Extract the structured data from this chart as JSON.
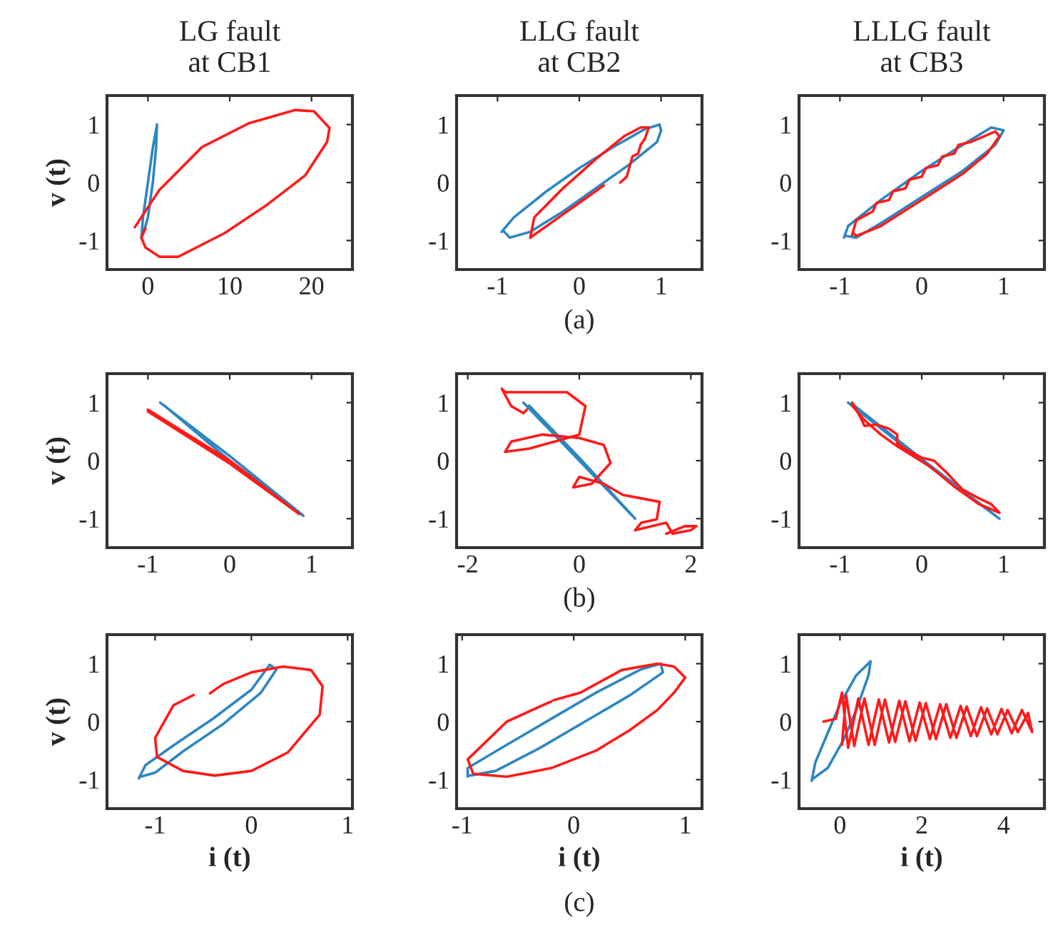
{
  "chart_data": [
    {
      "type": "line",
      "title": "LG fault\nat CB1",
      "ylabel": "v (t)",
      "xlim": [
        -5,
        25
      ],
      "xticks": [
        0,
        10,
        20
      ],
      "ylim": [
        -1.5,
        1.5
      ],
      "yticks": [
        -1,
        0,
        1
      ],
      "series": [
        {
          "color": "#2e86c1",
          "x": [
            1.1,
            1.0,
            0.6,
            0.0,
            -0.5,
            -0.8,
            -0.6,
            0.0,
            0.6,
            1.05
          ],
          "values": [
            1.0,
            0.6,
            0.0,
            -0.6,
            -0.85,
            -0.95,
            -0.6,
            0.0,
            0.6,
            0.95
          ]
        },
        {
          "color": "#ff1a1a",
          "x": [
            -1.6,
            1.4,
            6.6,
            12.3,
            18.0,
            20.3,
            22.2,
            21.9,
            19.2,
            14.6,
            9.4,
            3.7,
            1.4,
            -0.3,
            -0.8,
            -0.3
          ],
          "values": [
            -0.77,
            -0.13,
            0.61,
            1.02,
            1.25,
            1.23,
            0.94,
            0.7,
            0.12,
            -0.38,
            -0.87,
            -1.28,
            -1.28,
            -1.12,
            -0.95,
            -0.79
          ]
        }
      ]
    },
    {
      "type": "line",
      "title": "LLG fault\nat CB2",
      "annotations": [
        "(a)"
      ],
      "xlim": [
        -1.5,
        1.5
      ],
      "xticks": [
        -1,
        0,
        1
      ],
      "ylim": [
        -1.5,
        1.5
      ],
      "yticks": [
        -1,
        0,
        1
      ],
      "series": [
        {
          "color": "#2e86c1",
          "x": [
            -0.95,
            -0.8,
            -0.4,
            0.0,
            0.4,
            0.8,
            0.98,
            1.0,
            0.95,
            0.6,
            0.2,
            -0.2,
            -0.6,
            -0.85,
            -0.93
          ],
          "values": [
            -0.85,
            -0.6,
            -0.15,
            0.25,
            0.6,
            0.92,
            1.0,
            0.9,
            0.7,
            0.3,
            -0.1,
            -0.5,
            -0.85,
            -0.95,
            -0.83
          ]
        },
        {
          "color": "#ff1a1a",
          "x": [
            0.3,
            0.0,
            -0.3,
            -0.6,
            -0.55,
            -0.2,
            0.2,
            0.55,
            0.75,
            0.85,
            0.8,
            0.75,
            0.72,
            0.65,
            0.62,
            0.58,
            0.5
          ],
          "values": [
            -0.05,
            -0.35,
            -0.65,
            -0.95,
            -0.6,
            -0.1,
            0.4,
            0.8,
            0.95,
            0.95,
            0.75,
            0.65,
            0.5,
            0.45,
            0.3,
            0.1,
            0.0
          ]
        }
      ]
    },
    {
      "type": "line",
      "title": "LLLG fault\nat CB3",
      "xlim": [
        -1.5,
        1.5
      ],
      "xticks": [
        -1,
        0,
        1
      ],
      "ylim": [
        -1.5,
        1.5
      ],
      "yticks": [
        -1,
        0,
        1
      ],
      "series": [
        {
          "color": "#2e86c1",
          "x": [
            -0.95,
            -0.9,
            -0.5,
            0.0,
            0.5,
            0.85,
            1.0,
            0.9,
            0.5,
            0.0,
            -0.5,
            -0.8,
            -0.93
          ],
          "values": [
            -0.95,
            -0.75,
            -0.3,
            0.2,
            0.65,
            0.95,
            0.9,
            0.65,
            0.2,
            -0.25,
            -0.7,
            -0.95,
            -0.92
          ]
        },
        {
          "color": "#ff1a1a",
          "x": [
            -0.85,
            -0.8,
            -0.6,
            -0.55,
            -0.4,
            -0.35,
            -0.2,
            -0.15,
            0.0,
            0.05,
            0.2,
            0.25,
            0.4,
            0.45,
            0.6,
            0.9,
            0.95,
            0.8,
            0.5,
            0.0,
            -0.5,
            -0.8,
            -0.84
          ],
          "values": [
            -0.9,
            -0.65,
            -0.5,
            -0.35,
            -0.3,
            -0.15,
            -0.1,
            0.05,
            0.1,
            0.25,
            0.3,
            0.45,
            0.5,
            0.65,
            0.7,
            0.88,
            0.8,
            0.5,
            0.15,
            -0.3,
            -0.75,
            -0.92,
            -0.87
          ]
        }
      ]
    },
    {
      "type": "line",
      "ylabel": "v (t)",
      "xlim": [
        -1.5,
        1.5
      ],
      "xticks": [
        -1,
        0,
        1
      ],
      "ylim": [
        -1.5,
        1.5
      ],
      "yticks": [
        -1,
        0,
        1
      ],
      "series": [
        {
          "color": "#2e86c1",
          "x": [
            -0.85,
            0.0,
            0.9,
            0.0,
            -0.8
          ],
          "values": [
            1.0,
            0.08,
            -0.95,
            0.0,
            0.95
          ]
        },
        {
          "color": "#ff1a1a",
          "x": [
            -1.0,
            0.0,
            0.85,
            0.0,
            -1.0
          ],
          "values": [
            0.88,
            0.0,
            -0.92,
            -0.05,
            0.85
          ]
        }
      ]
    },
    {
      "type": "line",
      "annotations": [
        "(b)"
      ],
      "xlim": [
        -2.2,
        2.2
      ],
      "xticks": [
        -2,
        0,
        2
      ],
      "ylim": [
        -1.5,
        1.5
      ],
      "yticks": [
        -1,
        0,
        1
      ],
      "series": [
        {
          "color": "#2e86c1",
          "x": [
            -1.0,
            0.0,
            1.0,
            0.0,
            -0.9
          ],
          "values": [
            1.0,
            0.0,
            -1.0,
            0.05,
            0.95
          ]
        },
        {
          "color": "#ff1a1a",
          "x": [
            -0.94,
            -1.0,
            -1.22,
            -1.39,
            -1.33,
            -0.78,
            -0.22,
            0.11,
            0.0,
            -0.44,
            -0.89,
            -1.33,
            -1.22,
            -0.67,
            0.0,
            0.44,
            0.56,
            0.22,
            -0.11,
            0.0,
            0.44,
            0.78,
            1.11,
            1.44,
            1.39,
            1.11,
            1.0,
            1.56,
            1.67,
            2.0,
            2.1,
            1.89,
            1.56
          ],
          "values": [
            0.88,
            0.82,
            0.94,
            1.24,
            1.18,
            1.18,
            1.18,
            0.94,
            0.45,
            0.33,
            0.21,
            0.15,
            0.33,
            0.45,
            0.39,
            0.27,
            -0.04,
            -0.4,
            -0.46,
            -0.28,
            -0.4,
            -0.59,
            -0.65,
            -0.71,
            -1.01,
            -1.07,
            -1.2,
            -1.07,
            -1.26,
            -1.2,
            -1.13,
            -1.13,
            -1.26
          ]
        }
      ]
    },
    {
      "type": "line",
      "xlim": [
        -1.5,
        1.5
      ],
      "xticks": [
        -1,
        0,
        1
      ],
      "ylim": [
        -1.5,
        1.5
      ],
      "yticks": [
        -1,
        0,
        1
      ],
      "series": [
        {
          "color": "#2e86c1",
          "x": [
            -0.9,
            0.0,
            0.95,
            0.0,
            -0.85
          ],
          "values": [
            1.0,
            0.0,
            -1.0,
            0.03,
            0.98
          ]
        },
        {
          "color": "#ff1a1a",
          "x": [
            -0.85,
            -0.75,
            -0.7,
            -0.55,
            -0.4,
            -0.3,
            -0.3,
            -0.2,
            0.0,
            0.15,
            0.3,
            0.5,
            0.7,
            0.85,
            0.95,
            0.7,
            0.4,
            0.1,
            -0.3,
            -0.5,
            -0.7,
            -0.85
          ],
          "values": [
            1.0,
            0.75,
            0.6,
            0.62,
            0.55,
            0.45,
            0.3,
            0.2,
            0.05,
            0.0,
            -0.2,
            -0.5,
            -0.65,
            -0.75,
            -0.9,
            -0.75,
            -0.45,
            -0.1,
            0.25,
            0.45,
            0.7,
            0.95
          ]
        }
      ]
    },
    {
      "type": "line",
      "ylabel": "v (t)",
      "xlabel": "i (t)",
      "xlim": [
        -1.5,
        1.05
      ],
      "xticks": [
        -1,
        0,
        1
      ],
      "ylim": [
        -1.5,
        1.5
      ],
      "yticks": [
        -1,
        0,
        1
      ],
      "series": [
        {
          "color": "#2e86c1",
          "x": [
            -1.17,
            -1.1,
            -0.8,
            -0.4,
            0.0,
            0.19,
            0.26,
            0.1,
            -0.3,
            -0.7,
            -1.0,
            -1.15
          ],
          "values": [
            -0.98,
            -0.75,
            -0.4,
            0.05,
            0.55,
            0.98,
            0.9,
            0.5,
            -0.05,
            -0.5,
            -0.88,
            -0.95
          ]
        },
        {
          "color": "#ff1a1a",
          "x": [
            -0.6,
            -0.81,
            -1.0,
            -0.98,
            -0.71,
            -0.38,
            0.0,
            0.38,
            0.71,
            0.74,
            0.62,
            0.33,
            0.0,
            -0.29,
            -0.43
          ],
          "values": [
            0.46,
            0.28,
            -0.28,
            -0.61,
            -0.85,
            -0.93,
            -0.85,
            -0.53,
            0.12,
            0.61,
            0.89,
            0.95,
            0.85,
            0.65,
            0.49
          ]
        }
      ]
    },
    {
      "type": "line",
      "xlabel": "i (t)",
      "annotations": [
        "(c)"
      ],
      "xlim": [
        -1.05,
        1.15
      ],
      "xticks": [
        -1,
        0,
        1
      ],
      "ylim": [
        -1.5,
        1.5
      ],
      "yticks": [
        -1,
        0,
        1
      ],
      "series": [
        {
          "color": "#2e86c1",
          "x": [
            -0.95,
            -0.95,
            -0.6,
            -0.2,
            0.2,
            0.6,
            0.78,
            0.8,
            0.5,
            0.1,
            -0.3,
            -0.7,
            -0.93
          ],
          "values": [
            -0.95,
            -0.8,
            -0.4,
            0.05,
            0.5,
            0.9,
            1.0,
            0.85,
            0.45,
            0.0,
            -0.45,
            -0.85,
            -0.93
          ]
        },
        {
          "color": "#ff1a1a",
          "x": [
            -0.2,
            -0.6,
            -0.95,
            -0.9,
            -0.6,
            -0.2,
            0.2,
            0.5,
            0.75,
            0.9,
            1.0,
            0.9,
            0.75,
            0.43,
            0.06,
            -0.18
          ],
          "values": [
            0.35,
            0.0,
            -0.65,
            -0.9,
            -0.95,
            -0.8,
            -0.5,
            -0.15,
            0.2,
            0.5,
            0.76,
            0.95,
            1.0,
            0.89,
            0.5,
            0.37
          ]
        }
      ]
    },
    {
      "type": "line",
      "xlabel": "i (t)",
      "xlim": [
        -1,
        5
      ],
      "xticks": [
        0,
        2,
        4
      ],
      "ylim": [
        -1.5,
        1.5
      ],
      "yticks": [
        -1,
        0,
        1
      ],
      "series": [
        {
          "color": "#2e86c1",
          "x": [
            -0.69,
            -0.6,
            -0.3,
            0.0,
            0.4,
            0.75,
            0.7,
            0.4,
            0.1,
            -0.3,
            -0.67
          ],
          "values": [
            -1.02,
            -0.7,
            -0.2,
            0.3,
            0.8,
            1.04,
            0.8,
            0.2,
            -0.3,
            -0.8,
            -0.99
          ]
        },
        {
          "color": "#ff1a1a",
          "x": [
            -0.4,
            -0.1,
            0.05,
            0.2,
            0.45,
            0.7,
            0.95,
            1.2,
            1.45,
            1.7,
            1.95,
            2.2,
            2.45,
            2.7,
            2.95,
            3.2,
            3.45,
            3.7,
            3.95,
            4.2,
            4.45,
            4.7,
            4.6,
            4.35,
            4.1,
            3.85,
            3.6,
            3.35,
            3.1,
            2.85,
            2.6,
            2.35,
            2.1,
            1.85,
            1.6,
            1.35,
            1.1,
            0.85,
            0.6,
            0.35,
            0.15,
            0.05
          ],
          "values": [
            0.0,
            0.05,
            0.5,
            -0.45,
            0.4,
            -0.4,
            0.38,
            -0.36,
            0.36,
            -0.34,
            0.33,
            -0.3,
            0.3,
            -0.28,
            0.27,
            -0.25,
            0.25,
            -0.22,
            0.22,
            -0.2,
            0.2,
            -0.18,
            0.15,
            -0.18,
            0.2,
            -0.22,
            0.23,
            -0.25,
            0.26,
            -0.28,
            0.3,
            -0.3,
            0.32,
            -0.33,
            0.35,
            -0.35,
            0.38,
            -0.4,
            0.4,
            -0.42,
            0.45,
            -0.4
          ]
        }
      ]
    }
  ]
}
